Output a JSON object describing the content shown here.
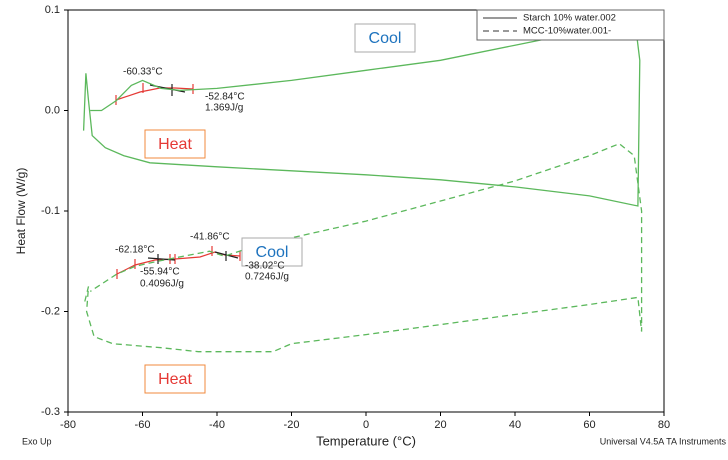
{
  "chart_data": {
    "type": "line",
    "xlabel": "Temperature (°C)",
    "ylabel": "Heat Flow (W/g)",
    "xlim": [
      -80,
      80
    ],
    "xticks": [
      -80,
      -60,
      -40,
      -20,
      0,
      20,
      40,
      60,
      80
    ],
    "ylim": [
      -0.3,
      0.1
    ],
    "yticks": [
      0.1,
      {
        "value": 0,
        "label": "0.0"
      },
      -0.1,
      -0.2,
      -0.3
    ],
    "legend": "top-right",
    "series": [
      {
        "name": "Starch 10% water.002",
        "color": "#5cb85c",
        "dash": false,
        "x": [
          -75.8,
          -75.2,
          -74.5,
          -73.5,
          -70,
          -65,
          -58,
          -40,
          -20,
          0,
          20,
          40,
          60,
          73,
          73.5,
          72,
          60,
          40,
          20,
          0,
          -20,
          -40,
          -50,
          -55,
          -60,
          -63,
          -67,
          -71,
          -74
        ],
        "values": [
          -0.02,
          0.037,
          0.01,
          -0.025,
          -0.037,
          -0.045,
          -0.052,
          -0.056,
          -0.06,
          -0.064,
          -0.069,
          -0.076,
          -0.085,
          -0.095,
          0.05,
          0.095,
          0.08,
          0.065,
          0.05,
          0.04,
          0.03,
          0.022,
          0.02,
          0.022,
          0.03,
          0.025,
          0.01,
          0.0,
          0.0
        ]
      },
      {
        "name": "MCC-10%water.001-",
        "color": "#5cb85c",
        "dash": true,
        "x": [
          -75.5,
          -74.5,
          -75,
          -73,
          -68,
          -55,
          -45,
          -25,
          -20,
          0,
          20,
          40,
          60,
          73,
          74,
          74,
          72,
          68,
          60,
          40,
          20,
          0,
          -30,
          -38,
          -42,
          -56,
          -62,
          -67,
          -74
        ],
        "values": [
          -0.19,
          -0.175,
          -0.2,
          -0.225,
          -0.232,
          -0.236,
          -0.24,
          -0.24,
          -0.232,
          -0.223,
          -0.213,
          -0.203,
          -0.193,
          -0.186,
          -0.22,
          -0.1,
          -0.045,
          -0.033,
          -0.045,
          -0.07,
          -0.09,
          -0.11,
          -0.135,
          -0.145,
          -0.14,
          -0.15,
          -0.155,
          -0.163,
          -0.18
        ]
      }
    ],
    "annotations": [
      "Cool",
      "Heat",
      "Cool",
      "Heat"
    ],
    "peak_labels": [
      "-60.33°C",
      "-52.84°C",
      "1.369J/g",
      "-62.18°C",
      "-55.94°C",
      "0.4096J/g",
      "-41.86°C",
      "-38.02°C",
      "0.7246J/g"
    ],
    "footer_left": "Exo Up",
    "footer_right": "Universal V4.5A TA Instruments"
  }
}
